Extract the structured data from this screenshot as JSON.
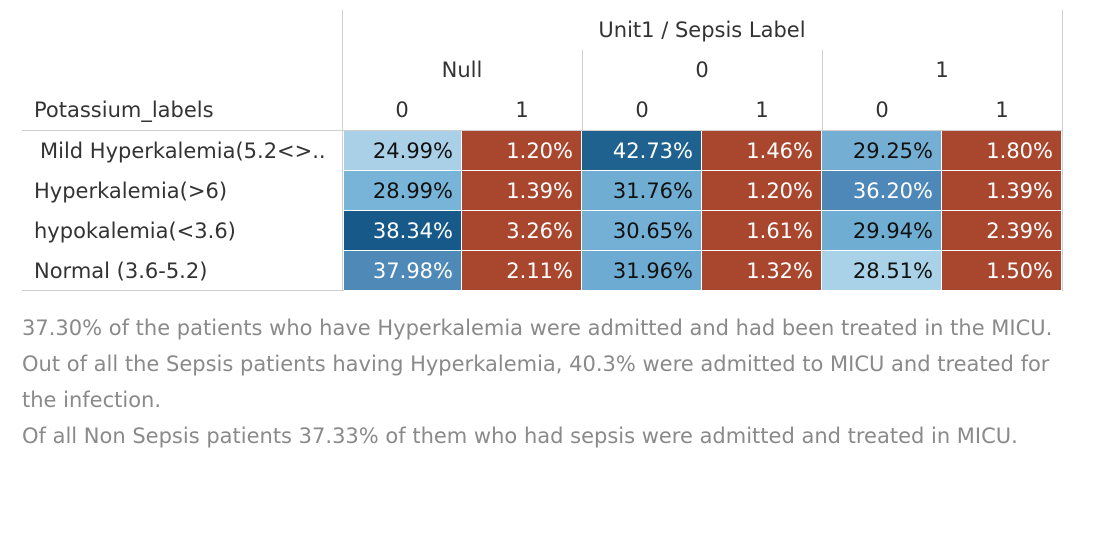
{
  "chart_data": {
    "type": "table",
    "title": "Unit1 / Sepsis Label",
    "row_header": "Potassium_labels",
    "column_groups": [
      {
        "name": "Null",
        "subcolumns": [
          "0",
          "1"
        ]
      },
      {
        "name": "0",
        "subcolumns": [
          "0",
          "1"
        ]
      },
      {
        "name": "1",
        "subcolumns": [
          "0",
          "1"
        ]
      }
    ],
    "rows": [
      {
        "label": "Mild Hyperkalemia(5.2<>..",
        "values": [
          "24.99%",
          "1.20%",
          "42.73%",
          "1.46%",
          "29.25%",
          "1.80%"
        ]
      },
      {
        "label": "Hyperkalemia(>6)",
        "values": [
          "28.99%",
          "1.39%",
          "31.76%",
          "1.20%",
          "36.20%",
          "1.39%"
        ]
      },
      {
        "label": "hypokalemia(<3.6)",
        "values": [
          "38.34%",
          "3.26%",
          "30.65%",
          "1.61%",
          "29.94%",
          "2.39%"
        ]
      },
      {
        "label": "Normal (3.6-5.2)",
        "values": [
          "37.98%",
          "2.11%",
          "31.96%",
          "1.32%",
          "28.51%",
          "1.50%"
        ]
      }
    ],
    "cell_colors": [
      [
        "#a9d0e7",
        "#a8472d",
        "#1f628f",
        "#a8472d",
        "#74afd3",
        "#a8472d"
      ],
      [
        "#78b4d8",
        "#a8472d",
        "#6fadd2",
        "#a8472d",
        "#4e88b8",
        "#a8472d"
      ],
      [
        "#175a8a",
        "#a8472d",
        "#74b0d5",
        "#a8472d",
        "#6fadd2",
        "#a8472d"
      ],
      [
        "#4f89b8",
        "#a8472d",
        "#6eabd2",
        "#a8472d",
        "#a9d1e7",
        "#a8472d"
      ]
    ],
    "light_text": [
      [
        false,
        true,
        true,
        true,
        false,
        true
      ],
      [
        false,
        true,
        false,
        true,
        true,
        true
      ],
      [
        true,
        true,
        false,
        true,
        false,
        true
      ],
      [
        true,
        true,
        false,
        true,
        false,
        true
      ]
    ]
  },
  "notes": [
    "37.30% of the patients who have Hyperkalemia were admitted and had been treated in the MICU.",
    "Out of all the Sepsis patients having Hyperkalemia, 40.3% were admitted to MICU and treated for the infection.",
    "Of all Non Sepsis patients 37.33% of them who had sepsis were admitted and treated in MICU."
  ]
}
